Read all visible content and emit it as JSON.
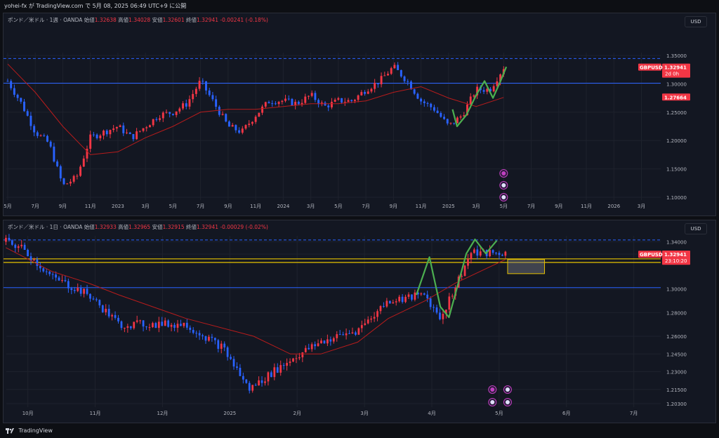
{
  "header": {
    "publish_text": "yohei-fx が TradingView.com で 5月 08, 2025 06:49 UTC+9 に公開"
  },
  "footer": {
    "brand": "TradingView"
  },
  "colors": {
    "background": "#131722",
    "up": "#f23645",
    "down": "#2962ff",
    "ma": "#b71c1c",
    "drawing_green": "#4caf50",
    "drawing_yellow": "#e5c100"
  },
  "currency_button": "USD",
  "chart_data": [
    {
      "type": "candlestick",
      "symbol": "GBPUSD",
      "legend": {
        "name": "ポンド／米ドル · 1週 · OANDA",
        "open_label": "始値",
        "open": "1.32638",
        "high_label": "高値",
        "high": "1.34028",
        "low_label": "安値",
        "low": "1.32601",
        "close_label": "終値",
        "close": "1.32941",
        "change": "-0.00241 (-0.18%)"
      },
      "y_ticks": [
        "1.35000",
        "1.30000",
        "1.25000",
        "1.20000",
        "1.15000",
        "1.10000"
      ],
      "ylim": [
        1.095,
        1.355
      ],
      "x_ticks": [
        "5月",
        "7月",
        "9月",
        "11月",
        "2023",
        "3月",
        "5月",
        "7月",
        "9月",
        "11月",
        "2024",
        "3月",
        "5月",
        "7月",
        "9月",
        "11月",
        "2025",
        "3月",
        "5月",
        "7月",
        "9月",
        "11月",
        "2026",
        "3月"
      ],
      "price_tags": [
        {
          "symbol": "GBPUSD",
          "value": "1.32941",
          "countdown": "2d 0h"
        },
        {
          "value": "1.27664"
        }
      ],
      "horizontal_lines": [
        1.3012,
        1.3447
      ],
      "series": [
        {
          "name": "GBPUSD",
          "x": [
            "2022-05",
            "2022-06",
            "2022-07",
            "2022-08",
            "2022-09",
            "2022-10",
            "2022-11",
            "2022-12",
            "2023-01",
            "2023-02",
            "2023-03",
            "2023-04",
            "2023-05",
            "2023-06",
            "2023-07",
            "2023-08",
            "2023-09",
            "2023-10",
            "2023-11",
            "2023-12",
            "2024-01",
            "2024-02",
            "2024-03",
            "2024-04",
            "2024-05",
            "2024-06",
            "2024-07",
            "2024-08",
            "2024-09",
            "2024-10",
            "2024-11",
            "2024-12",
            "2025-01",
            "2025-02",
            "2025-03",
            "2025-04",
            "2025-05"
          ],
          "values": [
            1.305,
            1.265,
            1.215,
            1.195,
            1.12,
            1.135,
            1.205,
            1.215,
            1.225,
            1.205,
            1.225,
            1.245,
            1.25,
            1.265,
            1.305,
            1.265,
            1.225,
            1.215,
            1.245,
            1.27,
            1.27,
            1.265,
            1.28,
            1.26,
            1.27,
            1.27,
            1.29,
            1.305,
            1.33,
            1.305,
            1.27,
            1.255,
            1.225,
            1.245,
            1.29,
            1.29,
            1.329
          ]
        },
        {
          "name": "MA",
          "x": [
            "2022-05",
            "2022-07",
            "2022-09",
            "2022-11",
            "2023-01",
            "2023-03",
            "2023-05",
            "2023-07",
            "2023-09",
            "2023-11",
            "2024-01",
            "2024-03",
            "2024-05",
            "2024-07",
            "2024-09",
            "2024-11",
            "2025-01",
            "2025-03",
            "2025-05"
          ],
          "values": [
            1.335,
            1.285,
            1.225,
            1.175,
            1.18,
            1.205,
            1.225,
            1.25,
            1.255,
            1.255,
            1.26,
            1.265,
            1.265,
            1.27,
            1.285,
            1.295,
            1.275,
            1.26,
            1.276
          ]
        }
      ]
    },
    {
      "type": "candlestick",
      "symbol": "GBPUSD",
      "legend": {
        "name": "ポンド／米ドル · 1日 · OANDA",
        "open_label": "始値",
        "open": "1.32933",
        "high_label": "高値",
        "high": "1.32965",
        "low_label": "安値",
        "low": "1.32915",
        "close_label": "終値",
        "close": "1.32941",
        "change": "-0.00029 (-0.02%)"
      },
      "y_ticks": [
        "1.34000",
        "1.32955",
        "1.30000",
        "1.28000",
        "1.26000",
        "1.24500",
        "1.23000",
        "1.21500",
        "1.20300"
      ],
      "ylim": [
        1.2,
        1.345
      ],
      "x_ticks": [
        "10月",
        "11月",
        "12月",
        "2025",
        "2月",
        "3月",
        "4月",
        "5月",
        "6月",
        "7月"
      ],
      "price_tags": [
        {
          "value": "1.32955"
        },
        {
          "symbol": "GBPUSD",
          "value": "1.32941",
          "countdown": "23:10:20"
        }
      ],
      "horizontal_lines": [
        1.3012,
        1.3415,
        1.3255,
        1.3225
      ],
      "series": [
        {
          "name": "GBPUSD",
          "x": [
            "2024-09-25",
            "2024-10-01",
            "2024-10-15",
            "2024-11-01",
            "2024-11-15",
            "2024-12-01",
            "2024-12-15",
            "2025-01-01",
            "2025-01-13",
            "2025-02-01",
            "2025-02-15",
            "2025-03-01",
            "2025-03-15",
            "2025-04-01",
            "2025-04-08",
            "2025-04-22",
            "2025-05-01",
            "2025-05-07"
          ],
          "values": [
            1.34,
            1.335,
            1.31,
            1.295,
            1.27,
            1.27,
            1.27,
            1.25,
            1.215,
            1.24,
            1.255,
            1.265,
            1.29,
            1.295,
            1.275,
            1.33,
            1.33,
            1.33
          ]
        },
        {
          "name": "MA",
          "x": [
            "2024-09-25",
            "2024-10-15",
            "2024-11-01",
            "2024-11-15",
            "2024-12-15",
            "2025-01-15",
            "2025-02-01",
            "2025-02-15",
            "2025-03-01",
            "2025-03-15",
            "2025-04-01",
            "2025-04-15",
            "2025-05-07"
          ],
          "values": [
            1.335,
            1.315,
            1.305,
            1.295,
            1.275,
            1.26,
            1.245,
            1.245,
            1.255,
            1.275,
            1.29,
            1.305,
            1.325
          ]
        }
      ]
    }
  ]
}
